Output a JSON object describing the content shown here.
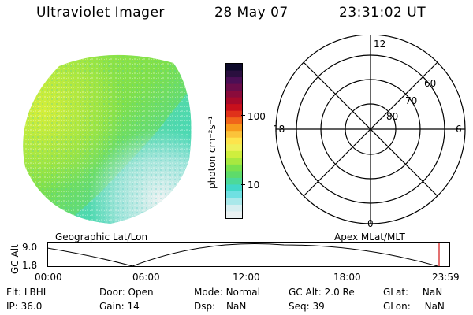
{
  "header": {
    "title": "Ultraviolet Imager",
    "date": "28 May 07",
    "time": "23:31:02 UT"
  },
  "colorbar": {
    "label": "photon cm⁻²s⁻¹",
    "ticks": [
      "100",
      "10"
    ],
    "colors": [
      "#0d0a2a",
      "#2a0f3f",
      "#4b0f55",
      "#6a0d4a",
      "#8a0b3b",
      "#a80a2a",
      "#c8101c",
      "#e0321a",
      "#f0651a",
      "#f79a1c",
      "#fbc33a",
      "#fde44c",
      "#eef05a",
      "#cfee3e",
      "#a8e840",
      "#79e14e",
      "#5edb6a",
      "#4cd99a",
      "#42d8c8",
      "#6fe0e2",
      "#a9e8ea",
      "#d6eef0",
      "#eaf1f2"
    ]
  },
  "imager": {
    "colors": {
      "green": "#7fe04a",
      "yellow": "#c8ee3c",
      "cyan": "#45d9c8",
      "light": "#e4eef0",
      "mid": "#5ddc78"
    }
  },
  "polar": {
    "labels": {
      "top": "12",
      "bottom": "0",
      "left": "18",
      "right": "6"
    },
    "rings": [
      "60",
      "70",
      "80"
    ]
  },
  "map_labels": {
    "left": "Geographic Lat/Lon",
    "right": "Apex MLat/MLT"
  },
  "altplot": {
    "ylabel": "GC Alt",
    "yticks": [
      "9.0",
      "1.8"
    ],
    "xticks": [
      "00:00",
      "06:00",
      "12:00",
      "18:00",
      "23:59"
    ],
    "marker_color": "#d01010"
  },
  "footer": {
    "row1": [
      {
        "label": "Flt:",
        "value": "LBHL"
      },
      {
        "label": "Door:",
        "value": "Open"
      },
      {
        "label": "Mode:",
        "value": "Normal"
      },
      {
        "label": "GC Alt:",
        "value": "2.0 Re"
      },
      {
        "label": "GLat:",
        "value": "NaN"
      }
    ],
    "row2": [
      {
        "label": "IP:",
        "value": "36.0"
      },
      {
        "label": "Gain:",
        "value": "14"
      },
      {
        "label": "Dsp:",
        "value": "NaN"
      },
      {
        "label": "Seq:",
        "value": "39"
      },
      {
        "label": "GLon:",
        "value": "NaN"
      }
    ]
  }
}
